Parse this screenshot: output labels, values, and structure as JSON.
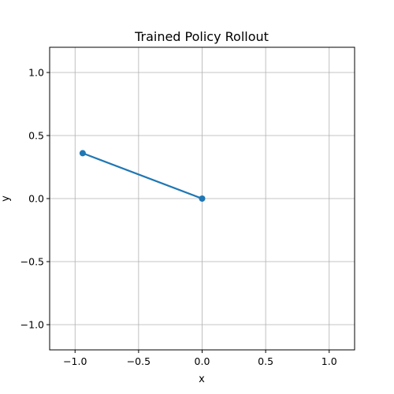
{
  "chart_data": {
    "type": "line",
    "title": "Trained Policy Rollout",
    "xlabel": "x",
    "ylabel": "y",
    "xlim": [
      -1.2,
      1.2
    ],
    "ylim": [
      -1.2,
      1.2
    ],
    "grid": true,
    "x_ticks": [
      -1.0,
      -0.5,
      0.0,
      0.5,
      1.0
    ],
    "x_tick_labels": [
      "−1.0",
      "−0.5",
      "0.0",
      "0.5",
      "1.0"
    ],
    "y_ticks": [
      -1.0,
      -0.5,
      0.0,
      0.5,
      1.0
    ],
    "y_tick_labels": [
      "−1.0",
      "−0.5",
      "0.0",
      "0.5",
      "1.0"
    ],
    "series": [
      {
        "color": "#1f77b4",
        "marker": "circle",
        "points": [
          {
            "x": -0.94,
            "y": 0.36
          },
          {
            "x": 0.0,
            "y": 0.0
          }
        ]
      }
    ]
  }
}
